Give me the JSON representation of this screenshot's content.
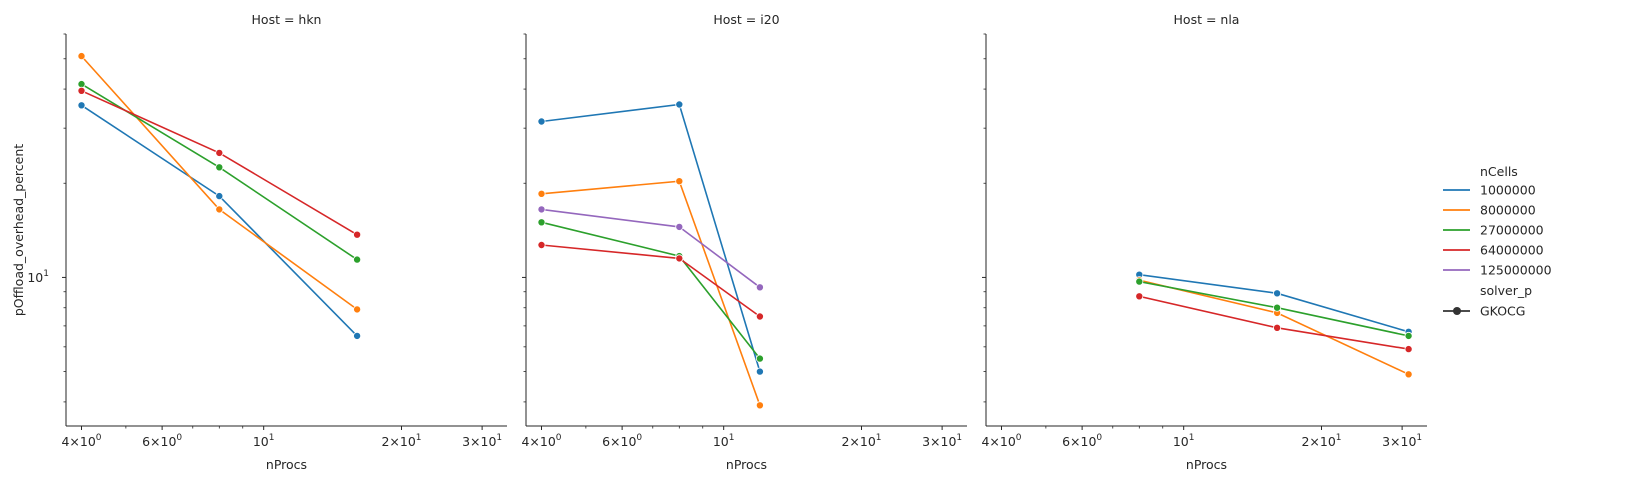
{
  "chart_data": {
    "type": "line",
    "x_scale": "log",
    "y_scale": "log",
    "shared_x_range": [
      3.7,
      34
    ],
    "shared_y_range": [
      3.35,
      60
    ],
    "xlabel": "nProcs",
    "ylabel": "pOffload_overhead_percent",
    "x_tick_labels": [
      {
        "value": 4,
        "base": "4",
        "sup": "0",
        "suffix": "10"
      },
      {
        "value": 6,
        "base": "6",
        "sup": "0",
        "suffix": "10"
      },
      {
        "value": 10,
        "base": "10",
        "sup": "1",
        "suffix": ""
      },
      {
        "value": 20,
        "base": "2",
        "sup": "1",
        "suffix": "10"
      },
      {
        "value": 30,
        "base": "3",
        "sup": "1",
        "suffix": "10"
      }
    ],
    "y_tick_labels": [
      {
        "value": 10,
        "base": "10",
        "sup": "1"
      }
    ],
    "legend": {
      "title": "nCells",
      "entries": [
        "1000000",
        "8000000",
        "27000000",
        "64000000",
        "125000000"
      ],
      "style_title": "solver_p",
      "style_entries": [
        "GKOCG"
      ],
      "placement": "right"
    },
    "colors": {
      "1000000": "#1f77b4",
      "8000000": "#ff7f0e",
      "27000000": "#2ca02c",
      "64000000": "#d62728",
      "125000000": "#9467bd"
    },
    "panels": [
      {
        "title": "Host = hkn",
        "series": [
          {
            "name": "1000000",
            "x": [
              4,
              8,
              16
            ],
            "y": [
              35.5,
              18.2,
              6.5
            ]
          },
          {
            "name": "8000000",
            "x": [
              4,
              8,
              16
            ],
            "y": [
              51.0,
              16.5,
              7.9
            ]
          },
          {
            "name": "27000000",
            "x": [
              4,
              8,
              16
            ],
            "y": [
              41.5,
              22.5,
              11.4
            ]
          },
          {
            "name": "64000000",
            "x": [
              4,
              8,
              16
            ],
            "y": [
              39.5,
              25.0,
              13.7
            ]
          }
        ]
      },
      {
        "title": "Host = i20",
        "series": [
          {
            "name": "1000000",
            "x": [
              4,
              8,
              12
            ],
            "y": [
              31.5,
              35.7,
              5.0
            ]
          },
          {
            "name": "8000000",
            "x": [
              4,
              8,
              12
            ],
            "y": [
              18.5,
              20.3,
              3.9
            ]
          },
          {
            "name": "27000000",
            "x": [
              4,
              8,
              12
            ],
            "y": [
              15.0,
              11.7,
              5.5
            ]
          },
          {
            "name": "64000000",
            "x": [
              4,
              8,
              12
            ],
            "y": [
              12.7,
              11.5,
              7.5
            ]
          },
          {
            "name": "125000000",
            "x": [
              4,
              8,
              12
            ],
            "y": [
              16.5,
              14.5,
              9.3
            ]
          }
        ]
      },
      {
        "title": "Host = nla",
        "series": [
          {
            "name": "1000000",
            "x": [
              8,
              16,
              31
            ],
            "y": [
              10.2,
              8.9,
              6.7
            ]
          },
          {
            "name": "8000000",
            "x": [
              8,
              16,
              31
            ],
            "y": [
              9.8,
              7.7,
              4.9
            ]
          },
          {
            "name": "27000000",
            "x": [
              8,
              16,
              31
            ],
            "y": [
              9.7,
              8.0,
              6.5
            ]
          },
          {
            "name": "64000000",
            "x": [
              8,
              16,
              31
            ],
            "y": [
              8.7,
              6.9,
              5.9
            ]
          }
        ]
      }
    ]
  }
}
